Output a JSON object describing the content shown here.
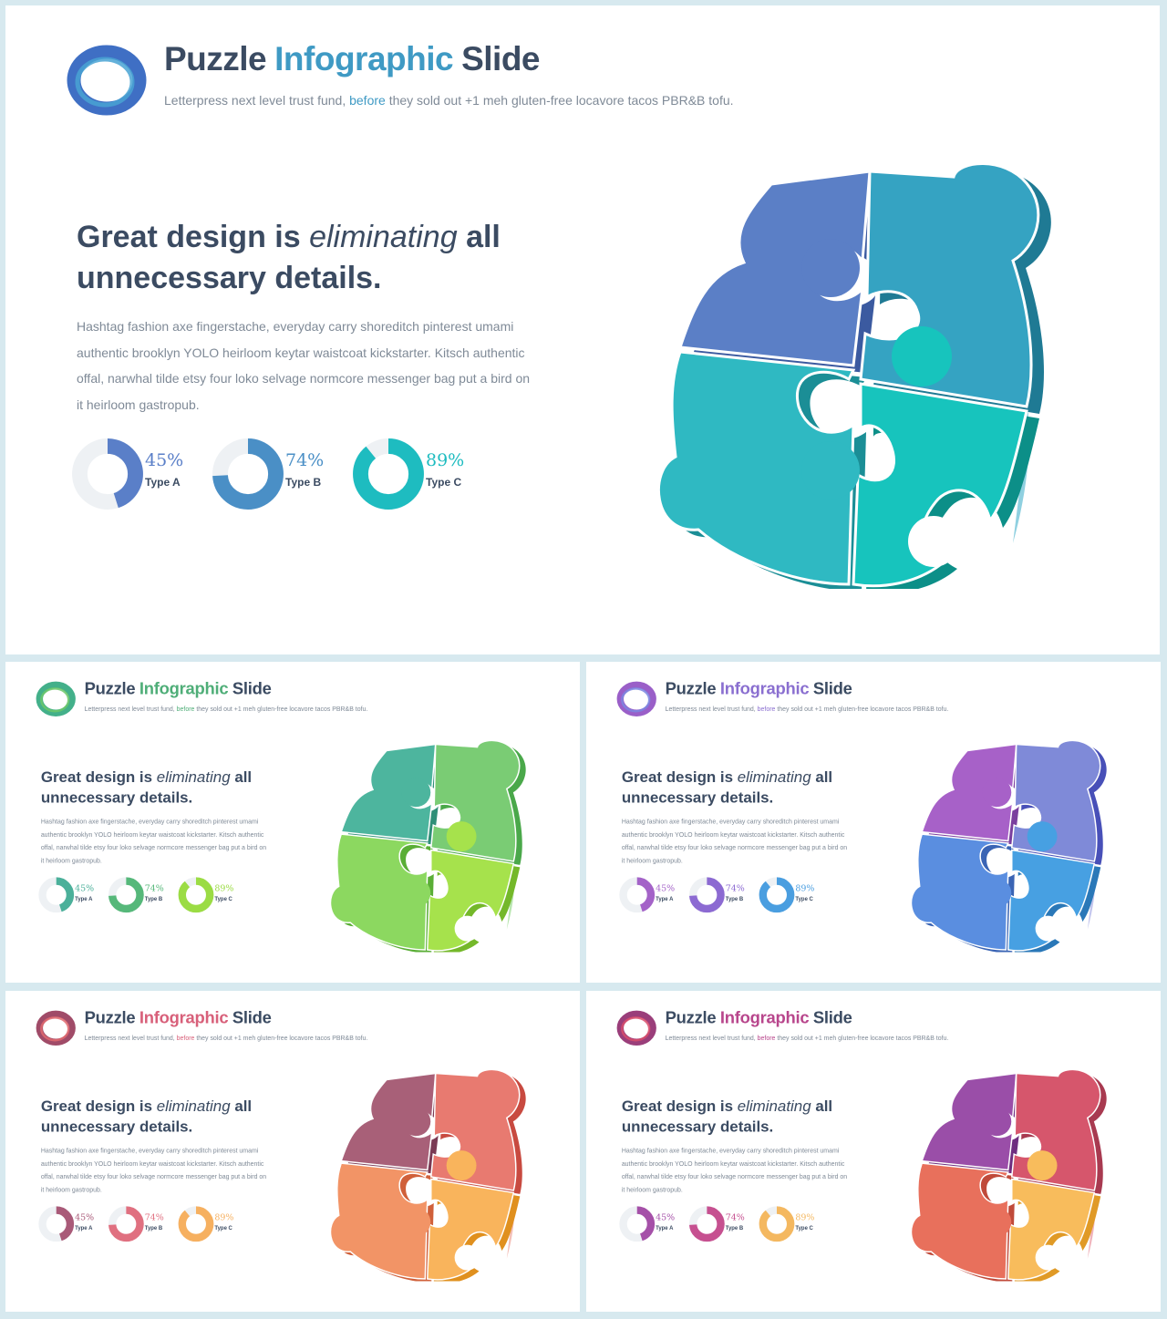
{
  "slides": [
    {
      "title": {
        "word1": "Puzzle",
        "word2": "Infographic",
        "word3": "Slide"
      },
      "subtitle": {
        "before": "Letterpress next level trust fund, ",
        "highlight": "before",
        "after": " they sold out +1 meh gluten-free locavore tacos PBR&B tofu."
      },
      "heading": {
        "part1": "Great design is ",
        "emph": "eliminating",
        "part2": " all unnecessary details."
      },
      "body": "Hashtag fashion axe fingerstache, everyday carry shoreditch pinterest umami authentic brooklyn YOLO heirloom keytar waistcoat kickstarter. Kitsch authentic offal, narwhal tilde etsy four loko selvage normcore messenger bag put a bird on it heirloom gastropub.",
      "stats": [
        {
          "value": "45%",
          "label": "Type A",
          "fraction": 0.45
        },
        {
          "value": "74%",
          "label": "Type B",
          "fraction": 0.74
        },
        {
          "value": "89%",
          "label": "Type C",
          "fraction": 0.89
        }
      ],
      "colors": {
        "accent": "#3f9ac4",
        "logo1": "#3f6fc4",
        "logo2": "#49a3d3",
        "donuts": [
          "#5a7fc8",
          "#4a8fc6",
          "#1ebcc0"
        ],
        "pieces": [
          "#5b7fc6",
          "#35a3c2",
          "#2fb9c2",
          "#17c4bd"
        ],
        "sides": [
          "#3b5aa0",
          "#1f7a94",
          "#1b8e96",
          "#0c8f88"
        ],
        "rim": "#8fd0e0"
      }
    },
    {
      "title": {
        "word1": "Puzzle",
        "word2": "Infographic",
        "word3": "Slide"
      },
      "subtitle": {
        "before": "Letterpress next level trust fund, ",
        "highlight": "before",
        "after": " they sold out +1 meh gluten-free locavore tacos PBR&B tofu."
      },
      "heading": {
        "part1": "Great design is ",
        "emph": "eliminating",
        "part2": " all unnecessary details."
      },
      "body": "Hashtag fashion axe fingerstache, everyday carry shoreditch pinterest umami authentic brooklyn YOLO heirloom keytar waistcoat kickstarter. Kitsch authentic offal, narwhal tilde etsy four loko selvage normcore messenger bag put a bird on it heirloom gastropub.",
      "stats": [
        {
          "value": "45%",
          "label": "Type A",
          "fraction": 0.45
        },
        {
          "value": "74%",
          "label": "Type B",
          "fraction": 0.74
        },
        {
          "value": "89%",
          "label": "Type C",
          "fraction": 0.89
        }
      ],
      "colors": {
        "accent": "#4fae78",
        "logo1": "#43b08a",
        "logo2": "#6cc86a",
        "donuts": [
          "#4bb09a",
          "#56b87a",
          "#9bdc44"
        ],
        "pieces": [
          "#4db59e",
          "#7acc74",
          "#8cd860",
          "#a6e24c"
        ],
        "sides": [
          "#2f8f78",
          "#4aa84a",
          "#5aae36",
          "#74b82a"
        ],
        "rim": "#b9e6b0"
      }
    },
    {
      "title": {
        "word1": "Puzzle",
        "word2": "Infographic",
        "word3": "Slide"
      },
      "subtitle": {
        "before": "Letterpress next level trust fund, ",
        "highlight": "before",
        "after": " they sold out +1 meh gluten-free locavore tacos PBR&B tofu."
      },
      "heading": {
        "part1": "Great design is ",
        "emph": "eliminating",
        "part2": " all unnecessary details."
      },
      "body": "Hashtag fashion axe fingerstache, everyday carry shoreditch pinterest umami authentic brooklyn YOLO heirloom keytar waistcoat kickstarter. Kitsch authentic offal, narwhal tilde etsy four loko selvage normcore messenger bag put a bird on it heirloom gastropub.",
      "stats": [
        {
          "value": "45%",
          "label": "Type A",
          "fraction": 0.45
        },
        {
          "value": "74%",
          "label": "Type B",
          "fraction": 0.74
        },
        {
          "value": "89%",
          "label": "Type C",
          "fraction": 0.89
        }
      ],
      "colors": {
        "accent": "#8a6fd0",
        "logo1": "#9a5fc8",
        "logo2": "#7b86e0",
        "donuts": [
          "#a463c8",
          "#8c6ad2",
          "#4a9ee0"
        ],
        "pieces": [
          "#a761c8",
          "#7f8ad8",
          "#5a8ee0",
          "#47a0e2"
        ],
        "sides": [
          "#7a3e9e",
          "#4850b8",
          "#3a64b4",
          "#2a78b8"
        ],
        "rim": "#c3c6ee"
      }
    },
    {
      "title": {
        "word1": "Puzzle",
        "word2": "Infographic",
        "word3": "Slide"
      },
      "subtitle": {
        "before": "Letterpress next level trust fund, ",
        "highlight": "before",
        "after": " they sold out +1 meh gluten-free locavore tacos PBR&B tofu."
      },
      "heading": {
        "part1": "Great design is ",
        "emph": "eliminating",
        "part2": " all unnecessary details."
      },
      "body": "Hashtag fashion axe fingerstache, everyday carry shoreditch pinterest umami authentic brooklyn YOLO heirloom keytar waistcoat kickstarter. Kitsch authentic offal, narwhal tilde etsy four loko selvage normcore messenger bag put a bird on it heirloom gastropub.",
      "stats": [
        {
          "value": "45%",
          "label": "Type A",
          "fraction": 0.45
        },
        {
          "value": "74%",
          "label": "Type B",
          "fraction": 0.74
        },
        {
          "value": "89%",
          "label": "Type C",
          "fraction": 0.89
        }
      ],
      "colors": {
        "accent": "#d8607a",
        "logo1": "#a04b68",
        "logo2": "#e06a70",
        "donuts": [
          "#a95a78",
          "#e07080",
          "#f6b060"
        ],
        "pieces": [
          "#a86078",
          "#e87a70",
          "#f29466",
          "#f9b45c"
        ],
        "sides": [
          "#7a3a54",
          "#c84a40",
          "#d0603a",
          "#e0901e"
        ],
        "rim": "#f4c0b8"
      }
    },
    {
      "title": {
        "word1": "Puzzle",
        "word2": "Infographic",
        "word3": "Slide"
      },
      "subtitle": {
        "before": "Letterpress next level trust fund, ",
        "highlight": "before",
        "after": " they sold out +1 meh gluten-free locavore tacos PBR&B tofu."
      },
      "heading": {
        "part1": "Great design is ",
        "emph": "eliminating",
        "part2": " all unnecessary details."
      },
      "body": "Hashtag fashion axe fingerstache, everyday carry shoreditch pinterest umami authentic brooklyn YOLO heirloom keytar waistcoat kickstarter. Kitsch authentic offal, narwhal tilde etsy four loko selvage normcore messenger bag put a bird on it heirloom gastropub.",
      "stats": [
        {
          "value": "45%",
          "label": "Type A",
          "fraction": 0.45
        },
        {
          "value": "74%",
          "label": "Type B",
          "fraction": 0.74
        },
        {
          "value": "89%",
          "label": "Type C",
          "fraction": 0.89
        }
      ],
      "colors": {
        "accent": "#b8468c",
        "logo1": "#9a3e7a",
        "logo2": "#d84e6c",
        "donuts": [
          "#a550a8",
          "#c65090",
          "#f4b860"
        ],
        "pieces": [
          "#9a4ea8",
          "#d6566c",
          "#e8705c",
          "#f8bc5c"
        ],
        "sides": [
          "#6e2e80",
          "#a83a50",
          "#c04a3a",
          "#e09a26"
        ],
        "rim": "#f0b4bc"
      }
    }
  ]
}
